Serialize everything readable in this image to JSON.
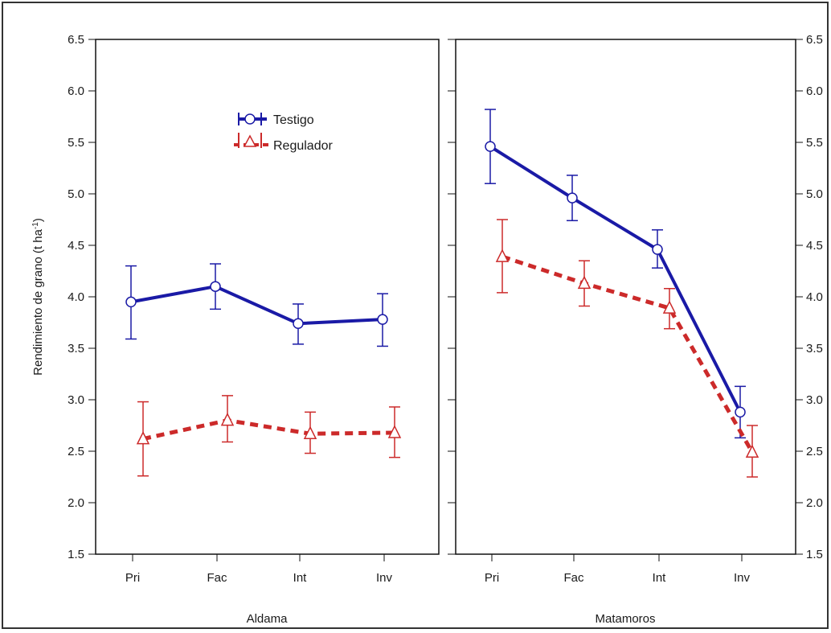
{
  "chart_data": {
    "type": "line",
    "ylabel": "Rendimiento de grano (t ha",
    "ylabel_sup": "-1",
    "ylabel_close": ")",
    "ylim": [
      1.5,
      6.5
    ],
    "yticks": [
      "1.5",
      "2.0",
      "2.5",
      "3.0",
      "3.5",
      "4.0",
      "4.5",
      "5.0",
      "5.5",
      "6.0",
      "6.5"
    ],
    "categories": [
      "Pri",
      "Fac",
      "Int",
      "Inv"
    ],
    "legend": {
      "placement": "top-left of left panel",
      "entries": [
        "Testigo",
        "Regulador"
      ]
    },
    "colors": {
      "Testigo": "#1a1aa6",
      "Regulador": "#cc2a2a"
    },
    "panels": [
      {
        "xlabel": "Aldama",
        "series": [
          {
            "name": "Testigo",
            "marker": "circle",
            "line": "solid",
            "values": [
              3.95,
              4.1,
              3.74,
              3.78
            ],
            "lower": [
              3.59,
              3.88,
              3.54,
              3.52
            ],
            "upper": [
              4.3,
              4.32,
              3.93,
              4.03
            ]
          },
          {
            "name": "Regulador",
            "marker": "triangle",
            "line": "dashed",
            "values": [
              2.62,
              2.8,
              2.67,
              2.68
            ],
            "lower": [
              2.26,
              2.59,
              2.48,
              2.44
            ],
            "upper": [
              2.98,
              3.04,
              2.88,
              2.93
            ]
          }
        ]
      },
      {
        "xlabel": "Matamoros",
        "series": [
          {
            "name": "Testigo",
            "marker": "circle",
            "line": "solid",
            "values": [
              5.46,
              4.96,
              4.46,
              2.88
            ],
            "lower": [
              5.1,
              4.74,
              4.28,
              2.63
            ],
            "upper": [
              5.82,
              5.18,
              4.65,
              3.13
            ]
          },
          {
            "name": "Regulador",
            "marker": "triangle",
            "line": "dashed",
            "values": [
              4.39,
              4.13,
              3.89,
              2.49
            ],
            "lower": [
              4.04,
              3.91,
              3.69,
              2.25
            ],
            "upper": [
              4.75,
              4.35,
              4.08,
              2.75
            ]
          }
        ]
      }
    ]
  }
}
